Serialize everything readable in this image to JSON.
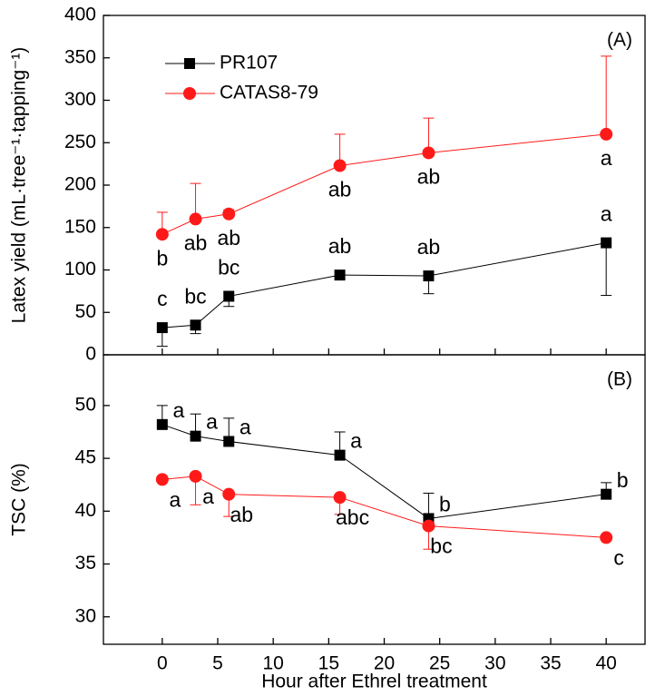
{
  "chart_data": [
    {
      "type": "line",
      "panel_label": "(A)",
      "y_label": "Latex yield (mL·tree⁻¹·tapping⁻¹)",
      "x": [
        0,
        3,
        6,
        16,
        24,
        40
      ],
      "xlim": [
        -5.3,
        43.5
      ],
      "xticks": [
        0,
        5,
        10,
        15,
        20,
        25,
        30,
        35,
        40
      ],
      "ylim": [
        0,
        400
      ],
      "yticks": [
        0,
        50,
        100,
        150,
        200,
        250,
        300,
        350,
        400
      ],
      "legend": "upper left",
      "grid": false,
      "series": [
        {
          "name": "PR107",
          "color": "#000000",
          "marker": "square",
          "error_direction": "down",
          "values": [
            32,
            35,
            69,
            94,
            93,
            132
          ],
          "errors": [
            22,
            10,
            12,
            3,
            21,
            62
          ],
          "significance_labels": [
            "c",
            "bc",
            "bc",
            "ab",
            "ab",
            "a"
          ]
        },
        {
          "name": "CATAS8-79",
          "color": "#ff1a1a",
          "marker": "circle",
          "error_direction": "up",
          "values": [
            142,
            160,
            166,
            223,
            238,
            260
          ],
          "errors": [
            26,
            42,
            5,
            37,
            41,
            92
          ],
          "significance_labels": [
            "b",
            "ab",
            "ab",
            "ab",
            "ab",
            "a"
          ]
        }
      ]
    },
    {
      "type": "line",
      "panel_label": "(B)",
      "y_label": "TSC (%)",
      "x_label": "Hour after Ethrel treatment",
      "x": [
        0,
        3,
        6,
        16,
        24,
        40
      ],
      "xlim": [
        -5.3,
        43.5
      ],
      "xticks": [
        0,
        5,
        10,
        15,
        20,
        25,
        30,
        35,
        40
      ],
      "ylim": [
        27.4,
        54.8
      ],
      "yticks": [
        30,
        35,
        40,
        45,
        50
      ],
      "grid": false,
      "series": [
        {
          "color": "#000000",
          "marker": "square",
          "error_direction": "up",
          "values": [
            48.2,
            47.1,
            46.6,
            45.3,
            39.3,
            41.6
          ],
          "errors": [
            1.8,
            2.1,
            2.2,
            2.2,
            2.4,
            1.1
          ],
          "significance_labels": [
            "a",
            "a",
            "a",
            "a",
            "b",
            "b"
          ]
        },
        {
          "color": "#ff1a1a",
          "marker": "circle",
          "error_direction": "down",
          "values": [
            43.0,
            43.3,
            41.6,
            41.3,
            38.6,
            37.5
          ],
          "errors": [
            0.2,
            2.7,
            2.1,
            1.6,
            2.2,
            0.2
          ],
          "significance_labels": [
            "a",
            "a",
            "ab",
            "abc",
            "bc",
            "c"
          ]
        }
      ]
    }
  ]
}
